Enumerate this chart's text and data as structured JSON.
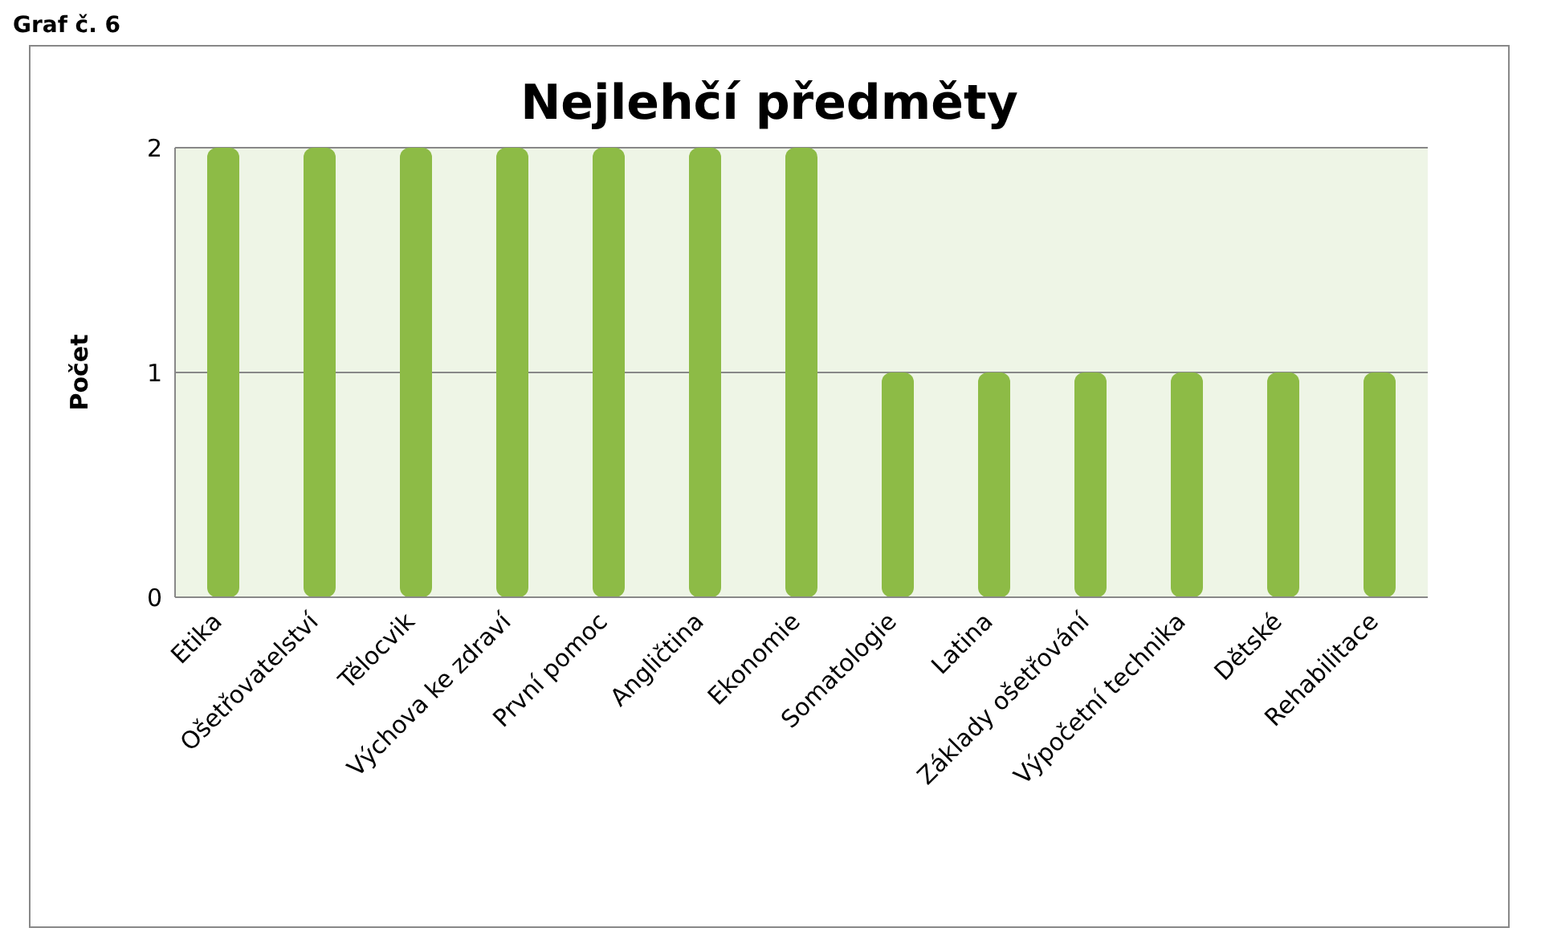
{
  "chart_data": {
    "type": "bar",
    "title": "Nejlehčí předměty",
    "ylabel": "Počet",
    "annotations": [
      "Graf č. 6"
    ],
    "categories": [
      "Etika",
      "Ošetřovatelství",
      "Tělocvik",
      "Výchova ke zdraví",
      "První pomoc",
      "Angličtina",
      "Ekonomie",
      "Somatologie",
      "Latina",
      "Základy ošetřování",
      "Výpočetní technika",
      "Dětské",
      "Rehabilitace"
    ],
    "values": [
      2,
      2,
      2,
      2,
      2,
      2,
      2,
      1,
      1,
      1,
      1,
      1,
      1
    ],
    "color": "#8dbb46",
    "ylim": [
      0,
      2
    ],
    "yticks": [
      0,
      1,
      2
    ],
    "grid": "y"
  }
}
